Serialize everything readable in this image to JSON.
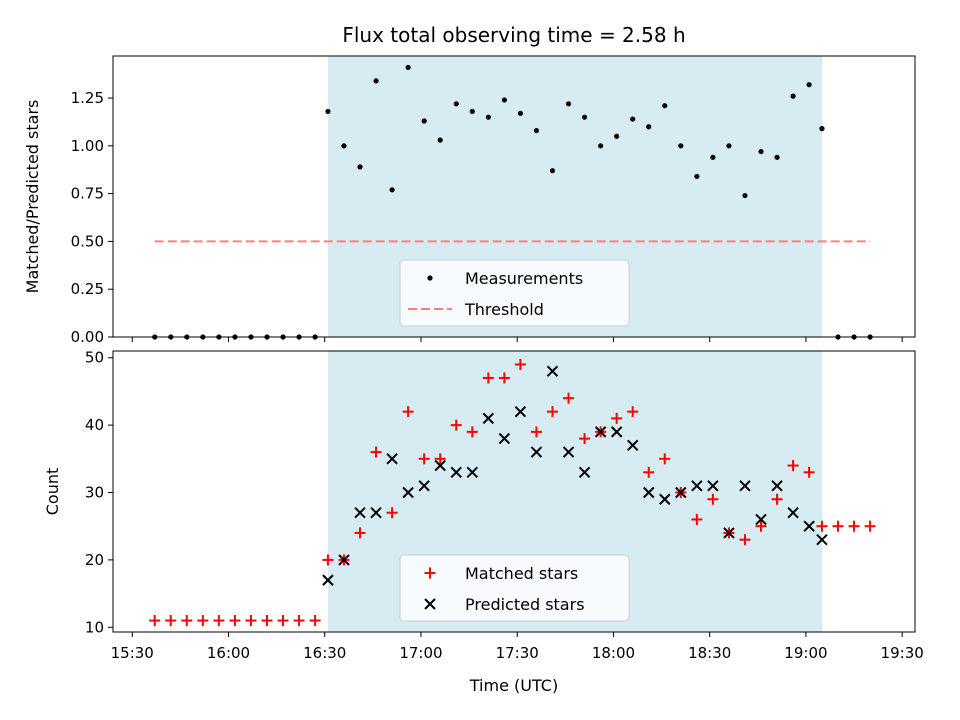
{
  "chart_data": {
    "title": "Flux total observing time = 2.58 h",
    "xlabel": "Time (UTC)",
    "x_unit": "time-of-day (HH:MM UTC)",
    "xlim": [
      "15:24",
      "19:34"
    ],
    "xticks": [
      "15:30",
      "16:00",
      "16:30",
      "17:00",
      "17:30",
      "18:00",
      "18:30",
      "19:00",
      "19:30"
    ],
    "shaded_span": {
      "start": "16:31",
      "end": "19:05",
      "color": "#add8e6",
      "alpha": 0.5
    },
    "panels": [
      {
        "type": "scatter",
        "ylabel": "Matched/Predicted stars",
        "ylim": [
          0,
          1.47
        ],
        "yticks": [
          "0.00",
          "0.25",
          "0.50",
          "0.75",
          "1.00",
          "1.25"
        ],
        "grid": false,
        "legend_position": "lower-center",
        "series": [
          {
            "name": "Measurements",
            "marker": "point",
            "color": "#000000",
            "points": [
              [
                "15:37",
                0
              ],
              [
                "15:42",
                0
              ],
              [
                "15:47",
                0
              ],
              [
                "15:52",
                0
              ],
              [
                "15:57",
                0
              ],
              [
                "16:02",
                0
              ],
              [
                "16:07",
                0
              ],
              [
                "16:12",
                0
              ],
              [
                "16:17",
                0
              ],
              [
                "16:22",
                0
              ],
              [
                "16:27",
                0
              ],
              [
                "16:31",
                1.18
              ],
              [
                "16:36",
                1.0
              ],
              [
                "16:41",
                0.89
              ],
              [
                "16:46",
                1.34
              ],
              [
                "16:51",
                0.77
              ],
              [
                "16:56",
                1.41
              ],
              [
                "17:01",
                1.13
              ],
              [
                "17:06",
                1.03
              ],
              [
                "17:11",
                1.22
              ],
              [
                "17:16",
                1.18
              ],
              [
                "17:21",
                1.15
              ],
              [
                "17:26",
                1.24
              ],
              [
                "17:31",
                1.17
              ],
              [
                "17:36",
                1.08
              ],
              [
                "17:41",
                0.87
              ],
              [
                "17:46",
                1.22
              ],
              [
                "17:51",
                1.15
              ],
              [
                "17:56",
                1.0
              ],
              [
                "18:01",
                1.05
              ],
              [
                "18:06",
                1.14
              ],
              [
                "18:11",
                1.1
              ],
              [
                "18:16",
                1.21
              ],
              [
                "18:21",
                1.0
              ],
              [
                "18:26",
                0.84
              ],
              [
                "18:31",
                0.94
              ],
              [
                "18:36",
                1.0
              ],
              [
                "18:41",
                0.74
              ],
              [
                "18:46",
                0.97
              ],
              [
                "18:51",
                0.94
              ],
              [
                "18:56",
                1.26
              ],
              [
                "19:01",
                1.32
              ],
              [
                "19:05",
                1.09
              ],
              [
                "19:10",
                0
              ],
              [
                "19:15",
                0
              ],
              [
                "19:20",
                0
              ]
            ]
          },
          {
            "name": "Threshold",
            "marker": "dashed-line",
            "color": "#ff7f7f",
            "points": [
              [
                "15:37",
                0.5
              ],
              [
                "19:20",
                0.5
              ]
            ]
          }
        ]
      },
      {
        "type": "scatter",
        "ylabel": "Count",
        "ylim": [
          9.3,
          51
        ],
        "yticks": [
          "10",
          "20",
          "30",
          "40",
          "50"
        ],
        "grid": false,
        "legend_position": "lower-center",
        "series": [
          {
            "name": "Matched stars",
            "marker": "plus",
            "color": "#ff0000",
            "points": [
              [
                "15:37",
                11
              ],
              [
                "15:42",
                11
              ],
              [
                "15:47",
                11
              ],
              [
                "15:52",
                11
              ],
              [
                "15:57",
                11
              ],
              [
                "16:02",
                11
              ],
              [
                "16:07",
                11
              ],
              [
                "16:12",
                11
              ],
              [
                "16:17",
                11
              ],
              [
                "16:22",
                11
              ],
              [
                "16:27",
                11
              ],
              [
                "16:31",
                20
              ],
              [
                "16:36",
                20
              ],
              [
                "16:41",
                24
              ],
              [
                "16:46",
                36
              ],
              [
                "16:51",
                27
              ],
              [
                "16:56",
                42
              ],
              [
                "17:01",
                35
              ],
              [
                "17:06",
                35
              ],
              [
                "17:11",
                40
              ],
              [
                "17:16",
                39
              ],
              [
                "17:21",
                47
              ],
              [
                "17:26",
                47
              ],
              [
                "17:31",
                49
              ],
              [
                "17:36",
                39
              ],
              [
                "17:41",
                42
              ],
              [
                "17:46",
                44
              ],
              [
                "17:51",
                38
              ],
              [
                "17:56",
                39
              ],
              [
                "18:01",
                41
              ],
              [
                "18:06",
                42
              ],
              [
                "18:11",
                33
              ],
              [
                "18:16",
                35
              ],
              [
                "18:21",
                30
              ],
              [
                "18:26",
                26
              ],
              [
                "18:31",
                29
              ],
              [
                "18:36",
                24
              ],
              [
                "18:41",
                23
              ],
              [
                "18:46",
                25
              ],
              [
                "18:51",
                29
              ],
              [
                "18:56",
                34
              ],
              [
                "19:01",
                33
              ],
              [
                "19:05",
                25
              ],
              [
                "19:10",
                25
              ],
              [
                "19:15",
                25
              ],
              [
                "19:20",
                25
              ]
            ]
          },
          {
            "name": "Predicted stars",
            "marker": "x",
            "color": "#000000",
            "points": [
              [
                "16:31",
                17
              ],
              [
                "16:36",
                20
              ],
              [
                "16:41",
                27
              ],
              [
                "16:46",
                27
              ],
              [
                "16:51",
                35
              ],
              [
                "16:56",
                30
              ],
              [
                "17:01",
                31
              ],
              [
                "17:06",
                34
              ],
              [
                "17:11",
                33
              ],
              [
                "17:16",
                33
              ],
              [
                "17:21",
                41
              ],
              [
                "17:26",
                38
              ],
              [
                "17:31",
                42
              ],
              [
                "17:36",
                36
              ],
              [
                "17:41",
                48
              ],
              [
                "17:46",
                36
              ],
              [
                "17:51",
                33
              ],
              [
                "17:56",
                39
              ],
              [
                "18:01",
                39
              ],
              [
                "18:06",
                37
              ],
              [
                "18:11",
                30
              ],
              [
                "18:16",
                29
              ],
              [
                "18:21",
                30
              ],
              [
                "18:26",
                31
              ],
              [
                "18:31",
                31
              ],
              [
                "18:36",
                24
              ],
              [
                "18:41",
                31
              ],
              [
                "18:46",
                26
              ],
              [
                "18:51",
                31
              ],
              [
                "18:56",
                27
              ],
              [
                "19:01",
                25
              ],
              [
                "19:05",
                23
              ]
            ]
          }
        ]
      }
    ]
  }
}
